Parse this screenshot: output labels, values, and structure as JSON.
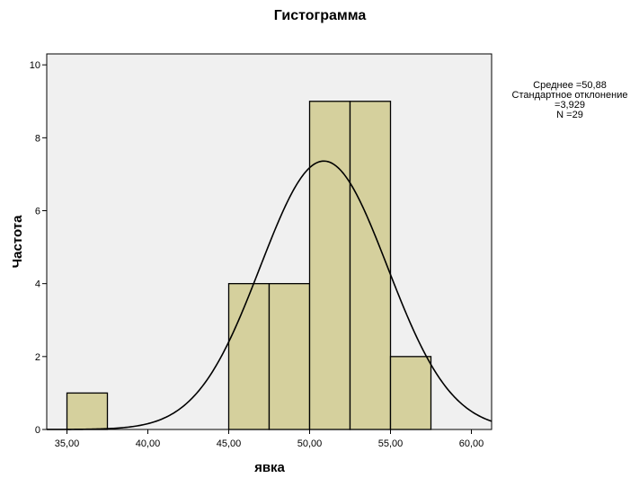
{
  "chart_data": {
    "type": "bar",
    "title": "Гистограмма",
    "xlabel": "явка",
    "ylabel": "Частота",
    "xlim": [
      33.75,
      61.25
    ],
    "ylim": [
      0,
      10.3
    ],
    "bin_width": 2.5,
    "bins": [
      {
        "start": 35.0,
        "end": 37.5,
        "count": 1
      },
      {
        "start": 45.0,
        "end": 47.5,
        "count": 4
      },
      {
        "start": 47.5,
        "end": 50.0,
        "count": 4
      },
      {
        "start": 50.0,
        "end": 52.5,
        "count": 9
      },
      {
        "start": 52.5,
        "end": 55.0,
        "count": 9
      },
      {
        "start": 55.0,
        "end": 57.5,
        "count": 2
      }
    ],
    "x_ticks": [
      35,
      40,
      45,
      50,
      55,
      60
    ],
    "x_tick_labels": [
      "35,00",
      "40,00",
      "45,00",
      "50,00",
      "55,00",
      "60,00"
    ],
    "y_ticks": [
      0,
      2,
      4,
      6,
      8,
      10
    ],
    "y_tick_labels": [
      "0",
      "2",
      "4",
      "6",
      "8",
      "10"
    ],
    "normal_curve": {
      "mean": 50.88,
      "sd": 3.929,
      "n": 29
    },
    "stats_lines": [
      "Среднее =50,88",
      "Стандартное отклонение",
      "=3,929",
      "N =29"
    ],
    "colors": {
      "bar_fill": "#d5d09d",
      "bar_stroke": "#000000",
      "plot_background": "#f0f0f0",
      "curve": "#000000"
    },
    "grid": false,
    "legend": "none"
  }
}
